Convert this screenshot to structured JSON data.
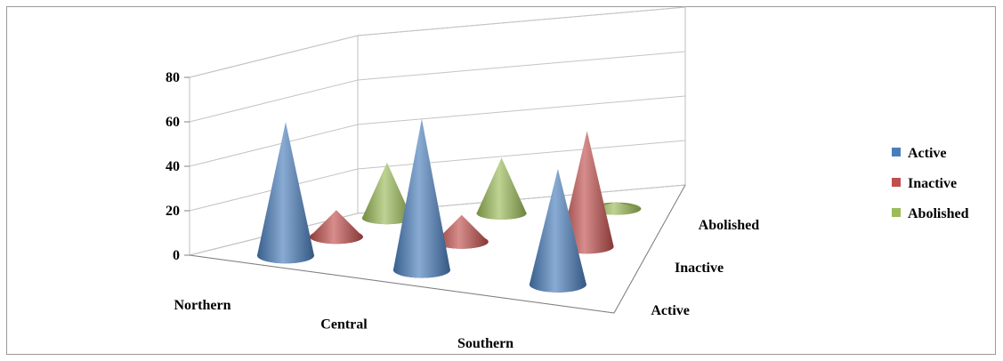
{
  "chart_data": {
    "type": "bar",
    "subtype": "3d-cone",
    "categories": [
      "Northern",
      "Central",
      "Southern"
    ],
    "depth_categories": [
      "Active",
      "Inactive",
      "Abolished"
    ],
    "series": [
      {
        "name": "Active",
        "values": [
          60,
          68,
          52
        ],
        "color": "#4a7ebb"
      },
      {
        "name": "Inactive",
        "values": [
          12,
          12,
          52
        ],
        "color": "#c0504d"
      },
      {
        "name": "Abolished",
        "values": [
          25,
          25,
          3
        ],
        "color": "#9bbb59"
      }
    ],
    "ylim": [
      0,
      80
    ],
    "yticks": [
      "0",
      "20",
      "40",
      "60",
      "80"
    ],
    "grid": true,
    "legend_position": "right"
  }
}
